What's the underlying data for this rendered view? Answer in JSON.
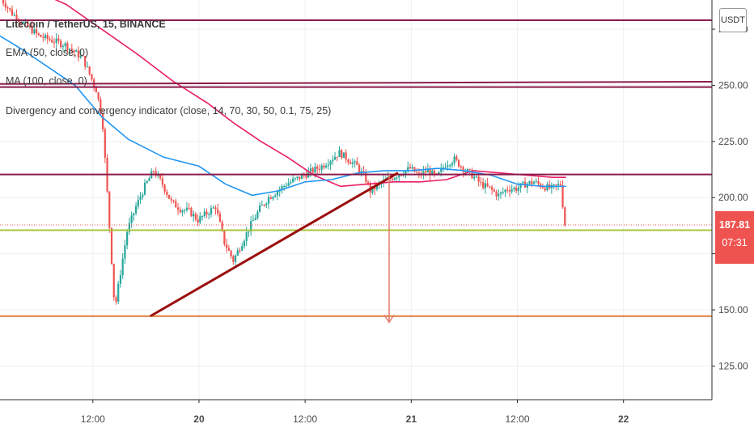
{
  "legend": {
    "symbol": "Litecoin / TetherUS, 15, BINANCE",
    "ema": "EMA (50, close, 0)",
    "ma": "MA (100, close, 0)",
    "indicator": "Divergency and convergency indicator (close, 14, 70, 30, 50, 0.1, 75, 25)"
  },
  "price_axis": {
    "unit": "USDT",
    "current_price": "187.81",
    "countdown": "07:31"
  },
  "chart_data": {
    "type": "candlestick",
    "title": "Litecoin / TetherUS, 15, BINANCE",
    "y_ticks": [
      125,
      150,
      175,
      200,
      225,
      250,
      275
    ],
    "y_tick_labels": [
      "125.00",
      "150.00",
      "175.00",
      "200.00",
      "225.00",
      "250.00",
      "275.00"
    ],
    "ylim": [
      110,
      288
    ],
    "x_tick_labels": [
      "12:00",
      "20",
      "12:00",
      "21",
      "12:00",
      "22"
    ],
    "x_ticks_hours": [
      12,
      24,
      36,
      48,
      60,
      72
    ],
    "xlim_hours": [
      1.5,
      82
    ],
    "grid": true,
    "price_path": [
      [
        1.5,
        290
      ],
      [
        3,
        282
      ],
      [
        6,
        272
      ],
      [
        9,
        268
      ],
      [
        11,
        262
      ],
      [
        12.5,
        248
      ],
      [
        13.2,
        235
      ],
      [
        14.2,
        175
      ],
      [
        14.6,
        150
      ],
      [
        15.3,
        168
      ],
      [
        16,
        185
      ],
      [
        17,
        196
      ],
      [
        18,
        205
      ],
      [
        19,
        212
      ],
      [
        20,
        206
      ],
      [
        21,
        198
      ],
      [
        22,
        195
      ],
      [
        23,
        194
      ],
      [
        24,
        190
      ],
      [
        25,
        193
      ],
      [
        26,
        196
      ],
      [
        27,
        180
      ],
      [
        28,
        172
      ],
      [
        29,
        180
      ],
      [
        30,
        188
      ],
      [
        31,
        195
      ],
      [
        32,
        200
      ],
      [
        34,
        206
      ],
      [
        36,
        210
      ],
      [
        38,
        214
      ],
      [
        40,
        220
      ],
      [
        41,
        217
      ],
      [
        42,
        214
      ],
      [
        43,
        208
      ],
      [
        43.5,
        203
      ],
      [
        45,
        207
      ],
      [
        47,
        211
      ],
      [
        48,
        213
      ],
      [
        49,
        210
      ],
      [
        50,
        212
      ],
      [
        51,
        209
      ],
      [
        52,
        215
      ],
      [
        53,
        217
      ],
      [
        54,
        213
      ],
      [
        55,
        210
      ],
      [
        56,
        206
      ],
      [
        57,
        204
      ],
      [
        58,
        201
      ],
      [
        59,
        204
      ],
      [
        60,
        204
      ],
      [
        61,
        206
      ],
      [
        62,
        207
      ],
      [
        63,
        205
      ],
      [
        64,
        204
      ],
      [
        65,
        206
      ],
      [
        65.5,
        187.81
      ]
    ],
    "ema_50": [
      [
        1.5,
        272
      ],
      [
        4,
        266
      ],
      [
        7,
        258
      ],
      [
        10,
        250
      ],
      [
        13,
        236
      ],
      [
        16,
        226
      ],
      [
        20,
        218
      ],
      [
        24,
        214
      ],
      [
        27,
        206
      ],
      [
        30,
        201
      ],
      [
        33,
        203
      ],
      [
        36,
        207
      ],
      [
        39,
        208
      ],
      [
        42,
        211
      ],
      [
        45,
        212
      ],
      [
        48,
        212
      ],
      [
        51,
        213
      ],
      [
        54,
        212
      ],
      [
        57,
        210
      ],
      [
        60,
        206
      ],
      [
        63,
        205
      ],
      [
        65.5,
        205
      ]
    ],
    "ma_100": [
      [
        1.5,
        296
      ],
      [
        5,
        293
      ],
      [
        9,
        286
      ],
      [
        13,
        275
      ],
      [
        17,
        264
      ],
      [
        21,
        252
      ],
      [
        25,
        242
      ],
      [
        28,
        233
      ],
      [
        31,
        225
      ],
      [
        34,
        218
      ],
      [
        37,
        210
      ],
      [
        40,
        205
      ],
      [
        43,
        206
      ],
      [
        46,
        207
      ],
      [
        49,
        207
      ],
      [
        52,
        208
      ],
      [
        55,
        212
      ],
      [
        58,
        211
      ],
      [
        61,
        210
      ],
      [
        64,
        209
      ],
      [
        65.5,
        209
      ]
    ],
    "horizontal_lines": [
      {
        "name": "resistance-279",
        "y": 279,
        "color": "#8b1a4a"
      },
      {
        "name": "resistance-250-a",
        "y": 250.6,
        "color": "#8b1a4a",
        "slope_to": 251.6
      },
      {
        "name": "resistance-250-b",
        "y": 249.2,
        "color": "#8b1a4a"
      },
      {
        "name": "resistance-210",
        "y": 210.3,
        "color": "#8b1a4a"
      },
      {
        "name": "support-185",
        "y": 185.5,
        "color": "#a7c63a"
      },
      {
        "name": "support-147",
        "y": 147.2,
        "color": "#e07b39"
      }
    ],
    "trendline": {
      "from": [
        18.5,
        147.2
      ],
      "to": [
        46.5,
        211
      ],
      "color": "#9b0f0f"
    },
    "target_arrow": {
      "x_hours": 45.5,
      "from": 211,
      "to": 144.5,
      "color": "#e07b6c"
    },
    "current_price_line": {
      "y": 187.81,
      "color": "#ef5350"
    },
    "colors": {
      "up": "#26a69a",
      "down": "#ef5350",
      "ema": "#2196f3",
      "ma": "#e91e63",
      "grid": "#eceff3"
    }
  }
}
